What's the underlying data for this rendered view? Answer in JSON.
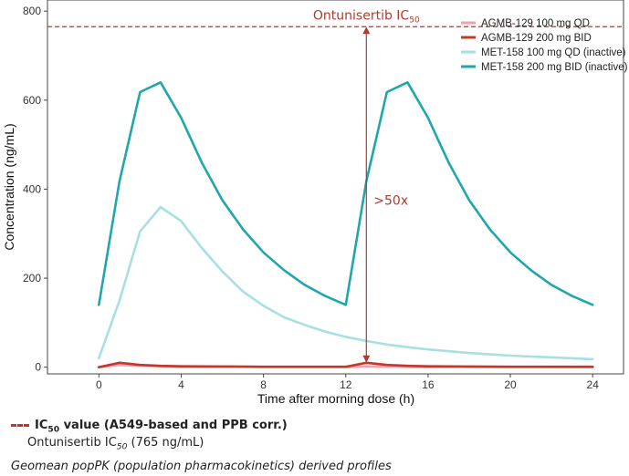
{
  "chart_data": {
    "type": "line",
    "xlabel": "Time after morning dose (h)",
    "ylabel": "Concentration (ng/mL)",
    "xlim": [
      -2.5,
      25.5
    ],
    "ylim": [
      -15,
      825
    ],
    "xticks": [
      0,
      4,
      8,
      12,
      16,
      20,
      24
    ],
    "yticks": [
      0,
      200,
      400,
      600,
      800
    ],
    "grid": false,
    "legend_position": "top-right",
    "series": [
      {
        "name": "AGMB-129 100 mg QD",
        "color": "#f2a0b0",
        "x": [
          0,
          1,
          2,
          3,
          4,
          6,
          8,
          10,
          12,
          13,
          14,
          16,
          20,
          24
        ],
        "y": [
          0,
          5,
          3,
          2,
          1,
          1,
          0.5,
          0.5,
          0.3,
          2,
          1,
          0.5,
          0.3,
          0.2
        ]
      },
      {
        "name": "AGMB-129 200 mg BID",
        "color": "#c0392b",
        "x": [
          0,
          1,
          2,
          3,
          4,
          6,
          8,
          10,
          12,
          13,
          14,
          15,
          16,
          18,
          20,
          22,
          24
        ],
        "y": [
          0,
          10,
          5,
          3,
          2,
          1.5,
          1,
          1,
          1,
          10,
          5,
          3,
          2,
          1.5,
          1,
          1,
          1
        ]
      },
      {
        "name": "MET-158 100 mg QD (inactive)",
        "color": "#a8dfe3",
        "x": [
          0,
          1,
          2,
          3,
          4,
          5,
          6,
          7,
          8,
          9,
          10,
          11,
          12,
          13,
          14,
          15,
          16,
          18,
          20,
          22,
          24
        ],
        "y": [
          20,
          150,
          305,
          360,
          328,
          268,
          215,
          170,
          138,
          112,
          95,
          80,
          68,
          59,
          51,
          45,
          40,
          32,
          26,
          22,
          18
        ]
      },
      {
        "name": "MET-158 200 mg BID (inactive)",
        "color": "#1fa7ac",
        "x": [
          0,
          1,
          2,
          3,
          4,
          5,
          6,
          7,
          8,
          9,
          10,
          11,
          12,
          13,
          14,
          15,
          16,
          17,
          18,
          19,
          20,
          21,
          22,
          23,
          24
        ],
        "y": [
          140,
          418,
          618,
          640,
          560,
          460,
          375,
          310,
          258,
          218,
          185,
          160,
          140,
          418,
          618,
          640,
          560,
          460,
          375,
          310,
          258,
          218,
          185,
          160,
          140
        ]
      }
    ],
    "reference_line": {
      "y": 765,
      "label_main": "Ontunisertib IC",
      "label_sub": "50",
      "color": "#b03a2e"
    },
    "ratio_annotation": {
      "x": 13,
      "y_from": 10,
      "y_to": 765,
      "label": ">50x",
      "color": "#b03a2e"
    }
  },
  "footer": {
    "legend_main": "IC",
    "legend_sub": "50",
    "legend_rest": " value (A549-based and PPB corr.)",
    "sub_main": "Ontunisertib IC",
    "sub_sub": "50",
    "sub_rest": " (765 ng/mL)",
    "note": "Geomean popPK (population pharmacokinetics) derived profiles"
  }
}
